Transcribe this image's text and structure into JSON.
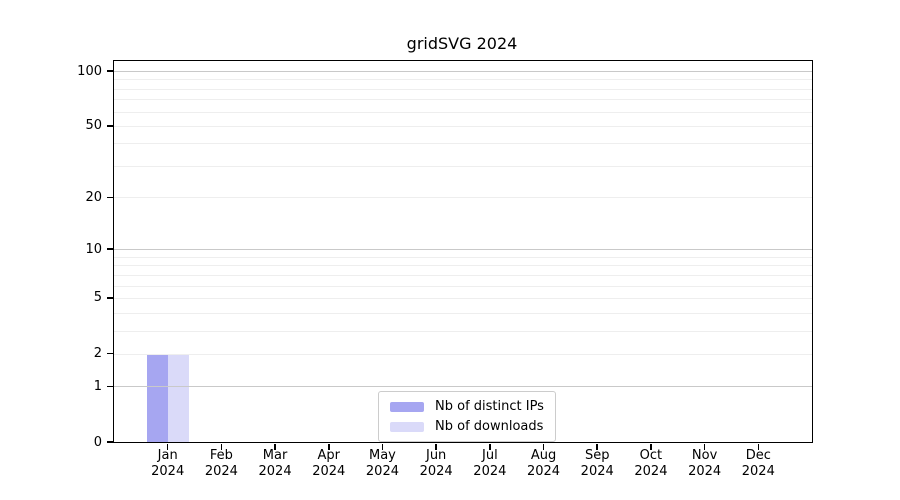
{
  "title": "gridSVG 2024",
  "chart_data": {
    "type": "bar",
    "title": "gridSVG 2024",
    "x_categories": [
      "Jan",
      "Feb",
      "Mar",
      "Apr",
      "May",
      "Jun",
      "Jul",
      "Aug",
      "Sep",
      "Oct",
      "Nov",
      "Dec"
    ],
    "x_year_label": "2024",
    "series": [
      {
        "name": "Nb of distinct IPs",
        "color": "#a6a6f1",
        "values": [
          2,
          0,
          0,
          0,
          0,
          0,
          0,
          0,
          0,
          0,
          0,
          0
        ]
      },
      {
        "name": "Nb of downloads",
        "color": "#dadaf9",
        "values": [
          2,
          0,
          0,
          0,
          0,
          0,
          0,
          0,
          0,
          0,
          0,
          0
        ]
      }
    ],
    "y_scale": "log10(1+x)",
    "y_ticks": [
      0,
      1,
      2,
      5,
      10,
      20,
      50,
      100
    ],
    "y_axis_top_value": 113,
    "grid": {
      "major_values": [
        1,
        10,
        100
      ],
      "minor_values": [
        2,
        3,
        4,
        5,
        6,
        7,
        8,
        9,
        20,
        30,
        40,
        50,
        60,
        70,
        80,
        90
      ],
      "major_color": "#c9c9c9",
      "minor_color": "#eeeeee"
    },
    "legend": {
      "position": "bottom-center",
      "entries": [
        "Nb of distinct IPs",
        "Nb of downloads"
      ]
    }
  }
}
